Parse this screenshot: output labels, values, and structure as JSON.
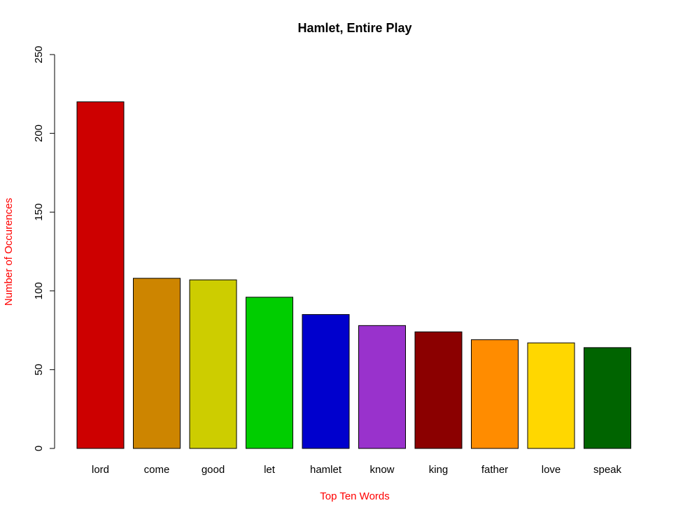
{
  "chart_data": {
    "type": "bar",
    "title": "Hamlet, Entire Play",
    "xlabel": "Top Ten Words",
    "ylabel": "Number of Occurences",
    "ylim": [
      0,
      250
    ],
    "yticks": [
      "0",
      "50",
      "100",
      "150",
      "200",
      "250"
    ],
    "categories": [
      "lord",
      "come",
      "good",
      "let",
      "hamlet",
      "know",
      "king",
      "father",
      "love",
      "speak"
    ],
    "values": [
      220,
      108,
      107,
      96,
      85,
      78,
      74,
      69,
      67,
      64
    ],
    "colors": [
      "#cd0000",
      "#cd8500",
      "#cdcd00",
      "#00cd00",
      "#0000cd",
      "#9932cc",
      "#8b0000",
      "#ff8c00",
      "#ffd700",
      "#006400"
    ],
    "label_color": "#ff0000",
    "grid": false,
    "legend": "none"
  }
}
